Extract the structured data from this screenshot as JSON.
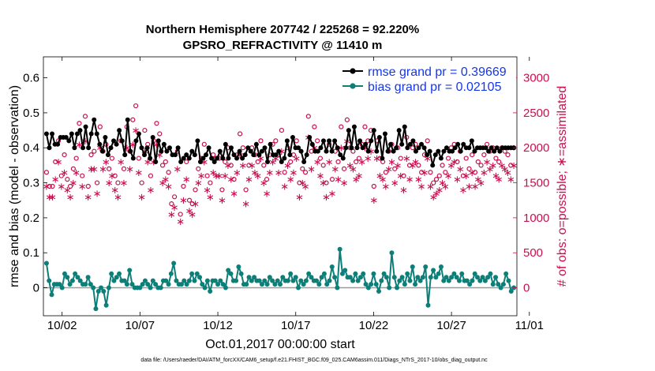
{
  "chart_data": {
    "type": "line",
    "title_line1": "Northern Hemisphere 207742 / 225268 = 92.220%",
    "title_line2": "GPSRO_REFRACTIVITY @ 11410 m",
    "xlabel": "Oct.01,2017 00:00:00 start",
    "ylabel": "rmse and bias (model - observation)",
    "y2label": "# of obs: o=possible; ∗=assimilated",
    "footer": "data file: /Users/raeder/DAI/ATM_forcXX/CAM6_setup/f.e21.FHIST_BGC.f09_025.CAM6assim.011/Diags_NTrS_2017-10/obs_diag_output.nc",
    "xlim": [
      0.8,
      31.2
    ],
    "ylim": [
      -0.08,
      0.66
    ],
    "y2lim": [
      -400,
      3300
    ],
    "x_ticks": [
      2,
      7,
      12,
      17,
      22,
      27,
      32
    ],
    "x_tick_labels": [
      "10/02",
      "10/07",
      "10/12",
      "10/17",
      "10/22",
      "10/27",
      "11/01"
    ],
    "y_ticks": [
      0,
      0.1,
      0.2,
      0.3,
      0.4,
      0.5,
      0.6
    ],
    "y_tick_labels": [
      "0",
      "0.1",
      "0.2",
      "0.3",
      "0.4",
      "0.5",
      "0.6"
    ],
    "y2_ticks": [
      0,
      500,
      1000,
      1500,
      2000,
      2500,
      3000
    ],
    "y2_tick_labels": [
      "0",
      "500",
      "1000",
      "1500",
      "2000",
      "2500",
      "3000"
    ],
    "series": [
      {
        "name": "rmse grand pr = 0.39669",
        "color": "#000000",
        "marker": "dot",
        "axis": "left",
        "values": [
          0.44,
          0.4,
          0.44,
          0.41,
          0.41,
          0.43,
          0.43,
          0.43,
          0.42,
          0.44,
          0.4,
          0.44,
          0.45,
          0.4,
          0.46,
          0.4,
          0.44,
          0.48,
          0.44,
          0.41,
          0.39,
          0.43,
          0.38,
          0.4,
          0.42,
          0.41,
          0.45,
          0.42,
          0.38,
          0.48,
          0.39,
          0.37,
          0.42,
          0.44,
          0.4,
          0.38,
          0.4,
          0.37,
          0.43,
          0.36,
          0.42,
          0.39,
          0.41,
          0.39,
          0.4,
          0.38,
          0.38,
          0.4,
          0.36,
          0.37,
          0.38,
          0.37,
          0.39,
          0.38,
          0.42,
          0.36,
          0.37,
          0.38,
          0.4,
          0.37,
          0.36,
          0.37,
          0.39,
          0.37,
          0.41,
          0.37,
          0.4,
          0.38,
          0.37,
          0.39,
          0.37,
          0.38,
          0.4,
          0.39,
          0.38,
          0.41,
          0.38,
          0.39,
          0.4,
          0.36,
          0.41,
          0.38,
          0.38,
          0.39,
          0.36,
          0.37,
          0.42,
          0.38,
          0.43,
          0.4,
          0.4,
          0.39,
          0.36,
          0.38,
          0.43,
          0.41,
          0.39,
          0.39,
          0.4,
          0.42,
          0.39,
          0.42,
          0.39,
          0.42,
          0.4,
          0.38,
          0.37,
          0.4,
          0.45,
          0.4,
          0.46,
          0.4,
          0.42,
          0.4,
          0.41,
          0.39,
          0.42,
          0.45,
          0.39,
          0.43,
          0.37,
          0.44,
          0.39,
          0.41,
          0.39,
          0.4,
          0.45,
          0.41,
          0.46,
          0.4,
          0.41,
          0.42,
          0.39,
          0.4,
          0.41,
          0.4,
          0.38,
          0.39,
          0.35,
          0.38,
          0.39,
          0.37,
          0.39,
          0.4,
          0.39,
          0.39,
          0.4,
          0.41,
          0.39,
          0.41,
          0.4,
          0.4,
          0.42,
          0.39,
          0.4,
          0.4,
          0.4,
          0.4,
          0.39,
          0.4,
          0.39,
          0.4,
          0.39,
          0.4,
          0.4,
          0.4,
          0.4,
          0.4
        ]
      },
      {
        "name": "bias grand pr = 0.02105",
        "color": "#0b7f78",
        "marker": "dot",
        "axis": "left",
        "values": [
          0.07,
          0.02,
          -0.02,
          0.01,
          0.01,
          0.01,
          0.0,
          0.04,
          0.03,
          0.01,
          0.02,
          0.04,
          0.03,
          0.02,
          0.01,
          0.01,
          0.03,
          0.01,
          0.0,
          -0.06,
          -0.01,
          0.0,
          -0.01,
          -0.05,
          0.0,
          0.04,
          0.02,
          0.03,
          0.04,
          0.02,
          0.02,
          0.01,
          0.05,
          0.01,
          0.0,
          0.0,
          0.0,
          0.01,
          0.02,
          0.01,
          0.0,
          0.02,
          0.01,
          0.0,
          0.0,
          0.02,
          0.02,
          0.01,
          0.04,
          0.07,
          0.02,
          0.01,
          0.01,
          0.02,
          0.01,
          0.02,
          0.04,
          0.02,
          0.04,
          0.03,
          0.01,
          0.0,
          0.02,
          -0.01,
          0.02,
          0.02,
          0.01,
          0.02,
          0.01,
          0.0,
          0.05,
          0.04,
          0.02,
          0.02,
          0.06,
          0.04,
          0.01,
          0.01,
          0.03,
          0.02,
          0.03,
          0.02,
          0.02,
          0.01,
          0.02,
          0.01,
          0.03,
          0.02,
          0.01,
          0.02,
          0.01,
          0.03,
          0.02,
          0.02,
          0.04,
          0.02,
          0.03,
          0.0,
          0.02,
          0.01,
          0.02,
          0.04,
          0.03,
          0.02,
          0.02,
          0.01,
          0.03,
          0.04,
          0.01,
          0.02,
          0.06,
          0.03,
          0.0,
          0.11,
          0.04,
          0.05,
          0.03,
          0.03,
          0.02,
          0.04,
          0.02,
          0.03,
          0.04,
          0.01,
          0.0,
          0.01,
          0.04,
          0.01,
          -0.01,
          0.02,
          0.04,
          0.03,
          0.0,
          0.1,
          0.03,
          0.0,
          0.02,
          0.03,
          0.01,
          0.04,
          0.02,
          0.06,
          0.01,
          0.03,
          0.02,
          0.03,
          0.06,
          -0.05,
          0.03,
          0.05,
          0.03,
          0.04,
          0.06,
          0.02,
          0.03,
          0.02,
          0.03,
          0.04,
          0.03,
          0.02,
          0.04,
          0.02,
          0.02,
          0.01,
          0.02,
          0.04,
          0.03,
          0.02,
          0.03,
          0.02,
          0.03,
          0.04,
          0.01,
          0.03,
          0.01,
          0.0,
          0.01,
          0.04,
          0.02,
          -0.01,
          0.0
        ]
      },
      {
        "name": "possible",
        "color": "#c8104e",
        "marker": "circle",
        "axis": "right",
        "values": [
          1650,
          1450,
          1450,
          1800,
          2100,
          1600,
          1900,
          1550,
          1450,
          1700,
          1850,
          2350,
          1600,
          2450,
          1450,
          1900,
          1950,
          1500,
          2300,
          1950,
          2050,
          1700,
          1850,
          1600,
          1500,
          2100,
          1700,
          2300,
          1950,
          2400,
          2600,
          1850,
          1500,
          2250,
          2050,
          1600,
          2100,
          2350,
          2200,
          1750,
          1800,
          1650,
          1200,
          1300,
          1950,
          1050,
          1450,
          1800,
          1250,
          1200,
          1400,
          1700,
          1850,
          2050,
          1600,
          1500,
          1900,
          1850,
          1850,
          1400,
          1800,
          2000,
          1750,
          1550,
          1900,
          2200,
          2000,
          1400,
          1750,
          2000,
          1900,
          1800,
          2100,
          1750,
          1550,
          1900,
          2050,
          2100,
          1900,
          2250,
          1650,
          2000,
          1800,
          1900,
          2100,
          1500,
          1700,
          1650,
          2450,
          1950,
          2300,
          2100,
          1850,
          1750,
          1500,
          2050,
          1550,
          1950,
          1800,
          2300,
          1700,
          2400,
          2000,
          1950,
          1800,
          1850,
          2050,
          2300,
          2100,
          2250,
          1450,
          2100,
          1850,
          1800,
          1650,
          1950,
          2050,
          1700,
          2000,
          1850,
          1600,
          2150,
          1750,
          2000,
          2050,
          1750,
          1650,
          1900,
          2100,
          1650,
          1500,
          1550,
          1600,
          1750,
          1650,
          1850,
          2000,
          2050,
          1800,
          1950,
          1600,
          1850,
          1700,
          1900,
          1650,
          1800,
          1750,
          1900,
          2050,
          1950,
          2000,
          1850,
          1800,
          2000,
          1950,
          1900,
          1750,
          2000
        ]
      },
      {
        "name": "assimilated",
        "color": "#c8104e",
        "marker": "star",
        "axis": "right",
        "values": [
          1450,
          1300,
          1300,
          1550,
          1800,
          1450,
          1650,
          1400,
          1300,
          1500,
          1650,
          2050,
          1450,
          2100,
          1300,
          1700,
          1700,
          1350,
          2000,
          1700,
          1800,
          1500,
          1600,
          1400,
          1300,
          1800,
          1500,
          2000,
          1700,
          2050,
          2250,
          1650,
          1300,
          1950,
          1800,
          1400,
          1800,
          2050,
          1900,
          1500,
          1550,
          1450,
          1050,
          1150,
          1700,
          950,
          1250,
          1550,
          1100,
          1050,
          1200,
          1500,
          1600,
          1800,
          1400,
          1300,
          1650,
          1600,
          1600,
          1250,
          1600,
          1750,
          1550,
          1350,
          1650,
          1900,
          1750,
          1200,
          1550,
          1750,
          1650,
          1600,
          1850,
          1500,
          1350,
          1650,
          1800,
          1850,
          1650,
          1950,
          1450,
          1750,
          1550,
          1650,
          1850,
          1300,
          1500,
          1450,
          2150,
          1700,
          2000,
          1800,
          1600,
          1500,
          1300,
          1800,
          1350,
          1700,
          1550,
          2000,
          1500,
          2100,
          1750,
          1700,
          1550,
          1600,
          1800,
          2000,
          1850,
          1950,
          1250,
          1850,
          1600,
          1550,
          1450,
          1700,
          1800,
          1500,
          1750,
          1600,
          1400,
          1850,
          1550,
          1750,
          1800,
          1550,
          1450,
          1650,
          1850,
          1450,
          1300,
          1350,
          1400,
          1500,
          1450,
          1600,
          1750,
          1800,
          1550,
          1700,
          1400,
          1600,
          1450,
          1650,
          1450,
          1550,
          1500,
          1650,
          1800,
          1700,
          1750,
          1600,
          1550,
          1750,
          1700,
          1650,
          1550,
          1750
        ]
      }
    ],
    "legend": [
      {
        "label": "rmse grand pr = 0.39669",
        "color": "#000000"
      },
      {
        "label": "bias grand pr = 0.02105",
        "color": "#0b7f78"
      }
    ],
    "legend_position": "top-right"
  }
}
